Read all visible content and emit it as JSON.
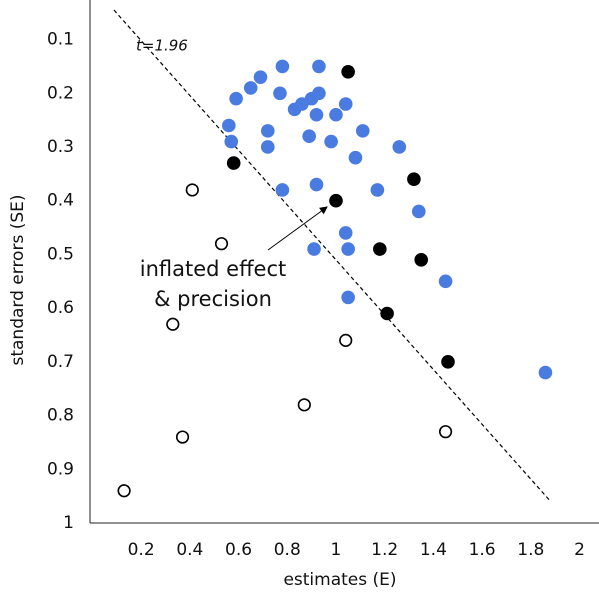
{
  "chart_data": {
    "type": "scatter",
    "x_label": "estimates (E)",
    "y_label": "standard errors (SE)",
    "xlim": [
      -0.01,
      2.08
    ],
    "ylim": [
      1,
      0.045
    ],
    "xticks": [
      0.2,
      0.4,
      0.6,
      0.8,
      1,
      1.2,
      1.4,
      1.6,
      1.8,
      2
    ],
    "yticks": [
      0.1,
      0.2,
      0.3,
      0.4,
      0.5,
      0.6,
      0.7,
      0.8,
      0.9,
      1
    ],
    "grid": false,
    "threshold": {
      "label": "t=1.96",
      "value": 1.96
    },
    "annotation": [
      "inflated effect",
      "& precision"
    ],
    "series": [
      {
        "color": "#4a7be0",
        "marker": "filled",
        "x": [
          0.59,
          0.65,
          0.69,
          0.78,
          0.93,
          0.77,
          0.83,
          0.86,
          0.9,
          0.93,
          0.92,
          1.0,
          1.04,
          0.56,
          0.57,
          0.72,
          0.72,
          0.89,
          0.98,
          1.08,
          1.11,
          1.26,
          0.78,
          0.92,
          1.17,
          1.34,
          1.04,
          0.91,
          1.05,
          1.45,
          1.05,
          1.86
        ],
        "values": [
          0.21,
          0.19,
          0.17,
          0.15,
          0.15,
          0.2,
          0.23,
          0.22,
          0.21,
          0.2,
          0.24,
          0.24,
          0.22,
          0.26,
          0.29,
          0.27,
          0.3,
          0.28,
          0.29,
          0.32,
          0.27,
          0.3,
          0.38,
          0.37,
          0.38,
          0.42,
          0.46,
          0.49,
          0.49,
          0.55,
          0.58,
          0.72
        ]
      },
      {
        "color": "#000000",
        "marker": "filled",
        "x": [
          1.05,
          0.58,
          1.0,
          1.32,
          1.18,
          1.35,
          1.21,
          1.46
        ],
        "values": [
          0.16,
          0.33,
          0.4,
          0.36,
          0.49,
          0.51,
          0.61,
          0.7
        ]
      },
      {
        "color": "#000000",
        "marker": "open",
        "x": [
          0.41,
          0.53,
          0.33,
          0.37,
          0.13,
          0.87,
          1.04,
          1.45
        ],
        "values": [
          0.38,
          0.48,
          0.63,
          0.84,
          0.94,
          0.78,
          0.66,
          0.83
        ]
      }
    ]
  }
}
